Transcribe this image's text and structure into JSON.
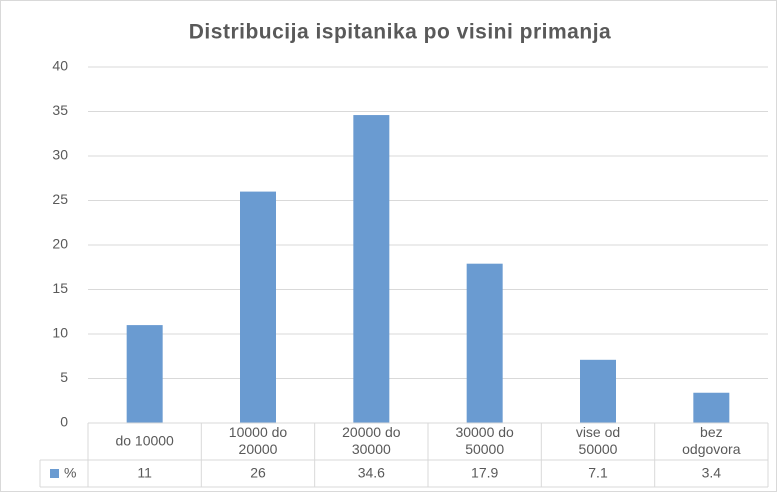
{
  "chart_data": {
    "type": "bar",
    "title": "Distribucija ispitanika po visini primanja",
    "categories": [
      "do 10000",
      "10000 do 20000",
      "20000 do 30000",
      "30000 do 50000",
      "vise od 50000",
      "bez odgovora"
    ],
    "series": [
      {
        "name": "%",
        "color": "#6a9bd1",
        "values": [
          11,
          26,
          34.6,
          17.9,
          7.1,
          3.4
        ]
      }
    ],
    "ylim": [
      0,
      40
    ],
    "yticks": [
      0,
      5,
      10,
      15,
      20,
      25,
      30,
      35,
      40
    ],
    "grid": true,
    "data_table": true
  }
}
